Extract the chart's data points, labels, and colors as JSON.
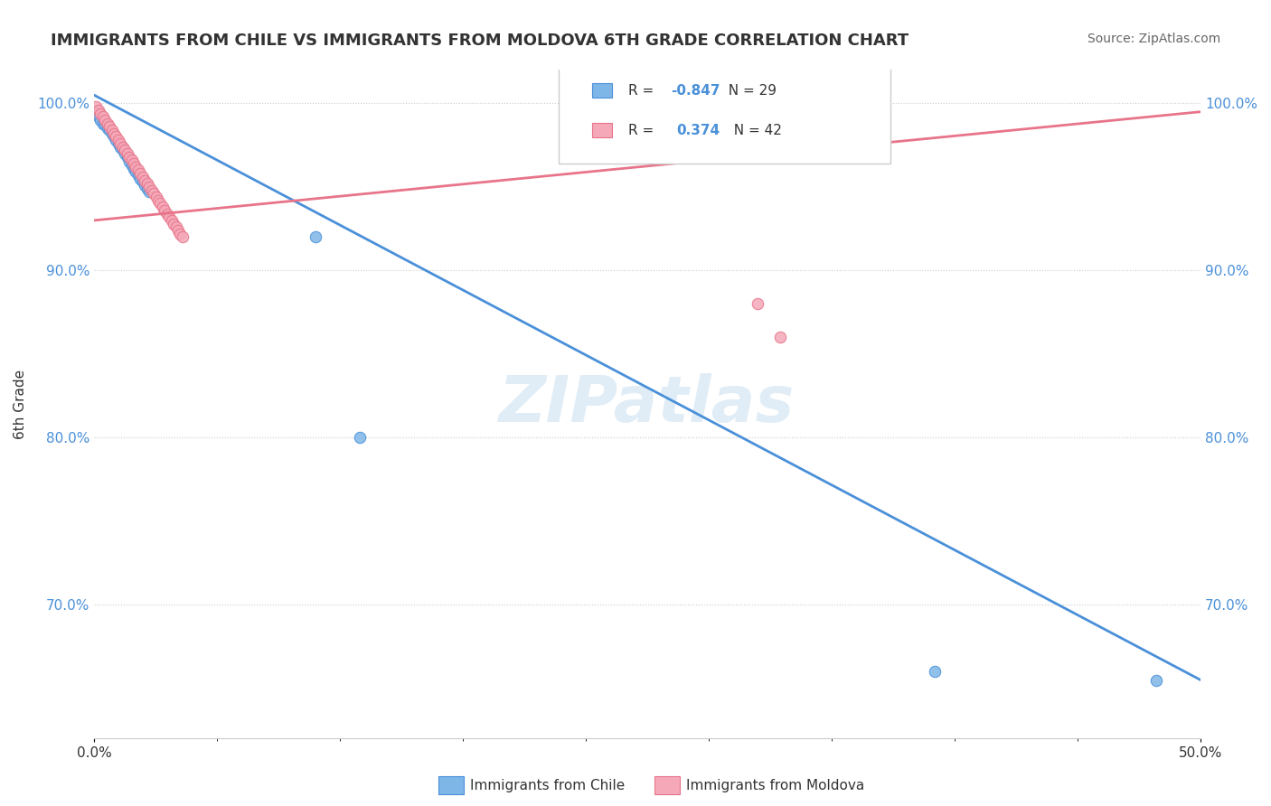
{
  "title": "IMMIGRANTS FROM CHILE VS IMMIGRANTS FROM MOLDOVA 6TH GRADE CORRELATION CHART",
  "source": "Source: ZipAtlas.com",
  "ylabel": "6th Grade",
  "legend_chile": "Immigrants from Chile",
  "legend_moldova": "Immigrants from Moldova",
  "r_chile": "-0.847",
  "n_chile": "29",
  "r_moldova": "0.374",
  "n_moldova": "42",
  "chile_color": "#7eb6e8",
  "moldova_color": "#f4a8b8",
  "chile_line_color": "#4a90d9",
  "moldova_line_color": "#e8748a",
  "watermark": "ZIPatlas",
  "background_color": "#ffffff",
  "chile_scatter_x": [
    0.001,
    0.002,
    0.003,
    0.004,
    0.005,
    0.006,
    0.007,
    0.008,
    0.009,
    0.01,
    0.011,
    0.012,
    0.013,
    0.014,
    0.015,
    0.016,
    0.017,
    0.018,
    0.019,
    0.02,
    0.021,
    0.022,
    0.023,
    0.024,
    0.025,
    0.1,
    0.12,
    0.38,
    0.48
  ],
  "chile_scatter_y": [
    0.995,
    0.992,
    0.99,
    0.988,
    0.987,
    0.985,
    0.984,
    0.982,
    0.98,
    0.978,
    0.976,
    0.974,
    0.972,
    0.97,
    0.968,
    0.965,
    0.963,
    0.961,
    0.959,
    0.957,
    0.955,
    0.953,
    0.951,
    0.949,
    0.947,
    0.92,
    0.8,
    0.66,
    0.655
  ],
  "moldova_scatter_x": [
    0.001,
    0.002,
    0.003,
    0.004,
    0.005,
    0.006,
    0.007,
    0.008,
    0.009,
    0.01,
    0.011,
    0.012,
    0.013,
    0.014,
    0.015,
    0.016,
    0.017,
    0.018,
    0.019,
    0.02,
    0.021,
    0.022,
    0.023,
    0.024,
    0.025,
    0.026,
    0.027,
    0.028,
    0.029,
    0.03,
    0.031,
    0.032,
    0.033,
    0.034,
    0.035,
    0.036,
    0.037,
    0.038,
    0.039,
    0.04,
    0.3,
    0.31
  ],
  "moldova_scatter_y": [
    0.998,
    0.996,
    0.994,
    0.992,
    0.99,
    0.988,
    0.986,
    0.984,
    0.982,
    0.98,
    0.978,
    0.976,
    0.974,
    0.972,
    0.97,
    0.968,
    0.966,
    0.964,
    0.962,
    0.96,
    0.958,
    0.956,
    0.954,
    0.952,
    0.95,
    0.948,
    0.946,
    0.944,
    0.942,
    0.94,
    0.938,
    0.936,
    0.934,
    0.932,
    0.93,
    0.928,
    0.926,
    0.924,
    0.922,
    0.92,
    0.88,
    0.86
  ],
  "chile_line_x": [
    0.0,
    0.5
  ],
  "chile_line_y": [
    1.005,
    0.655
  ],
  "moldova_line_x": [
    0.0,
    0.5
  ],
  "moldova_line_y": [
    0.93,
    0.995
  ],
  "xlim": [
    0.0,
    0.5
  ],
  "ylim": [
    0.62,
    1.02
  ],
  "ytick_vals": [
    1.0,
    0.9,
    0.8,
    0.7
  ],
  "ytick_labels": [
    "100.0%",
    "90.0%",
    "80.0%",
    "70.0%"
  ]
}
